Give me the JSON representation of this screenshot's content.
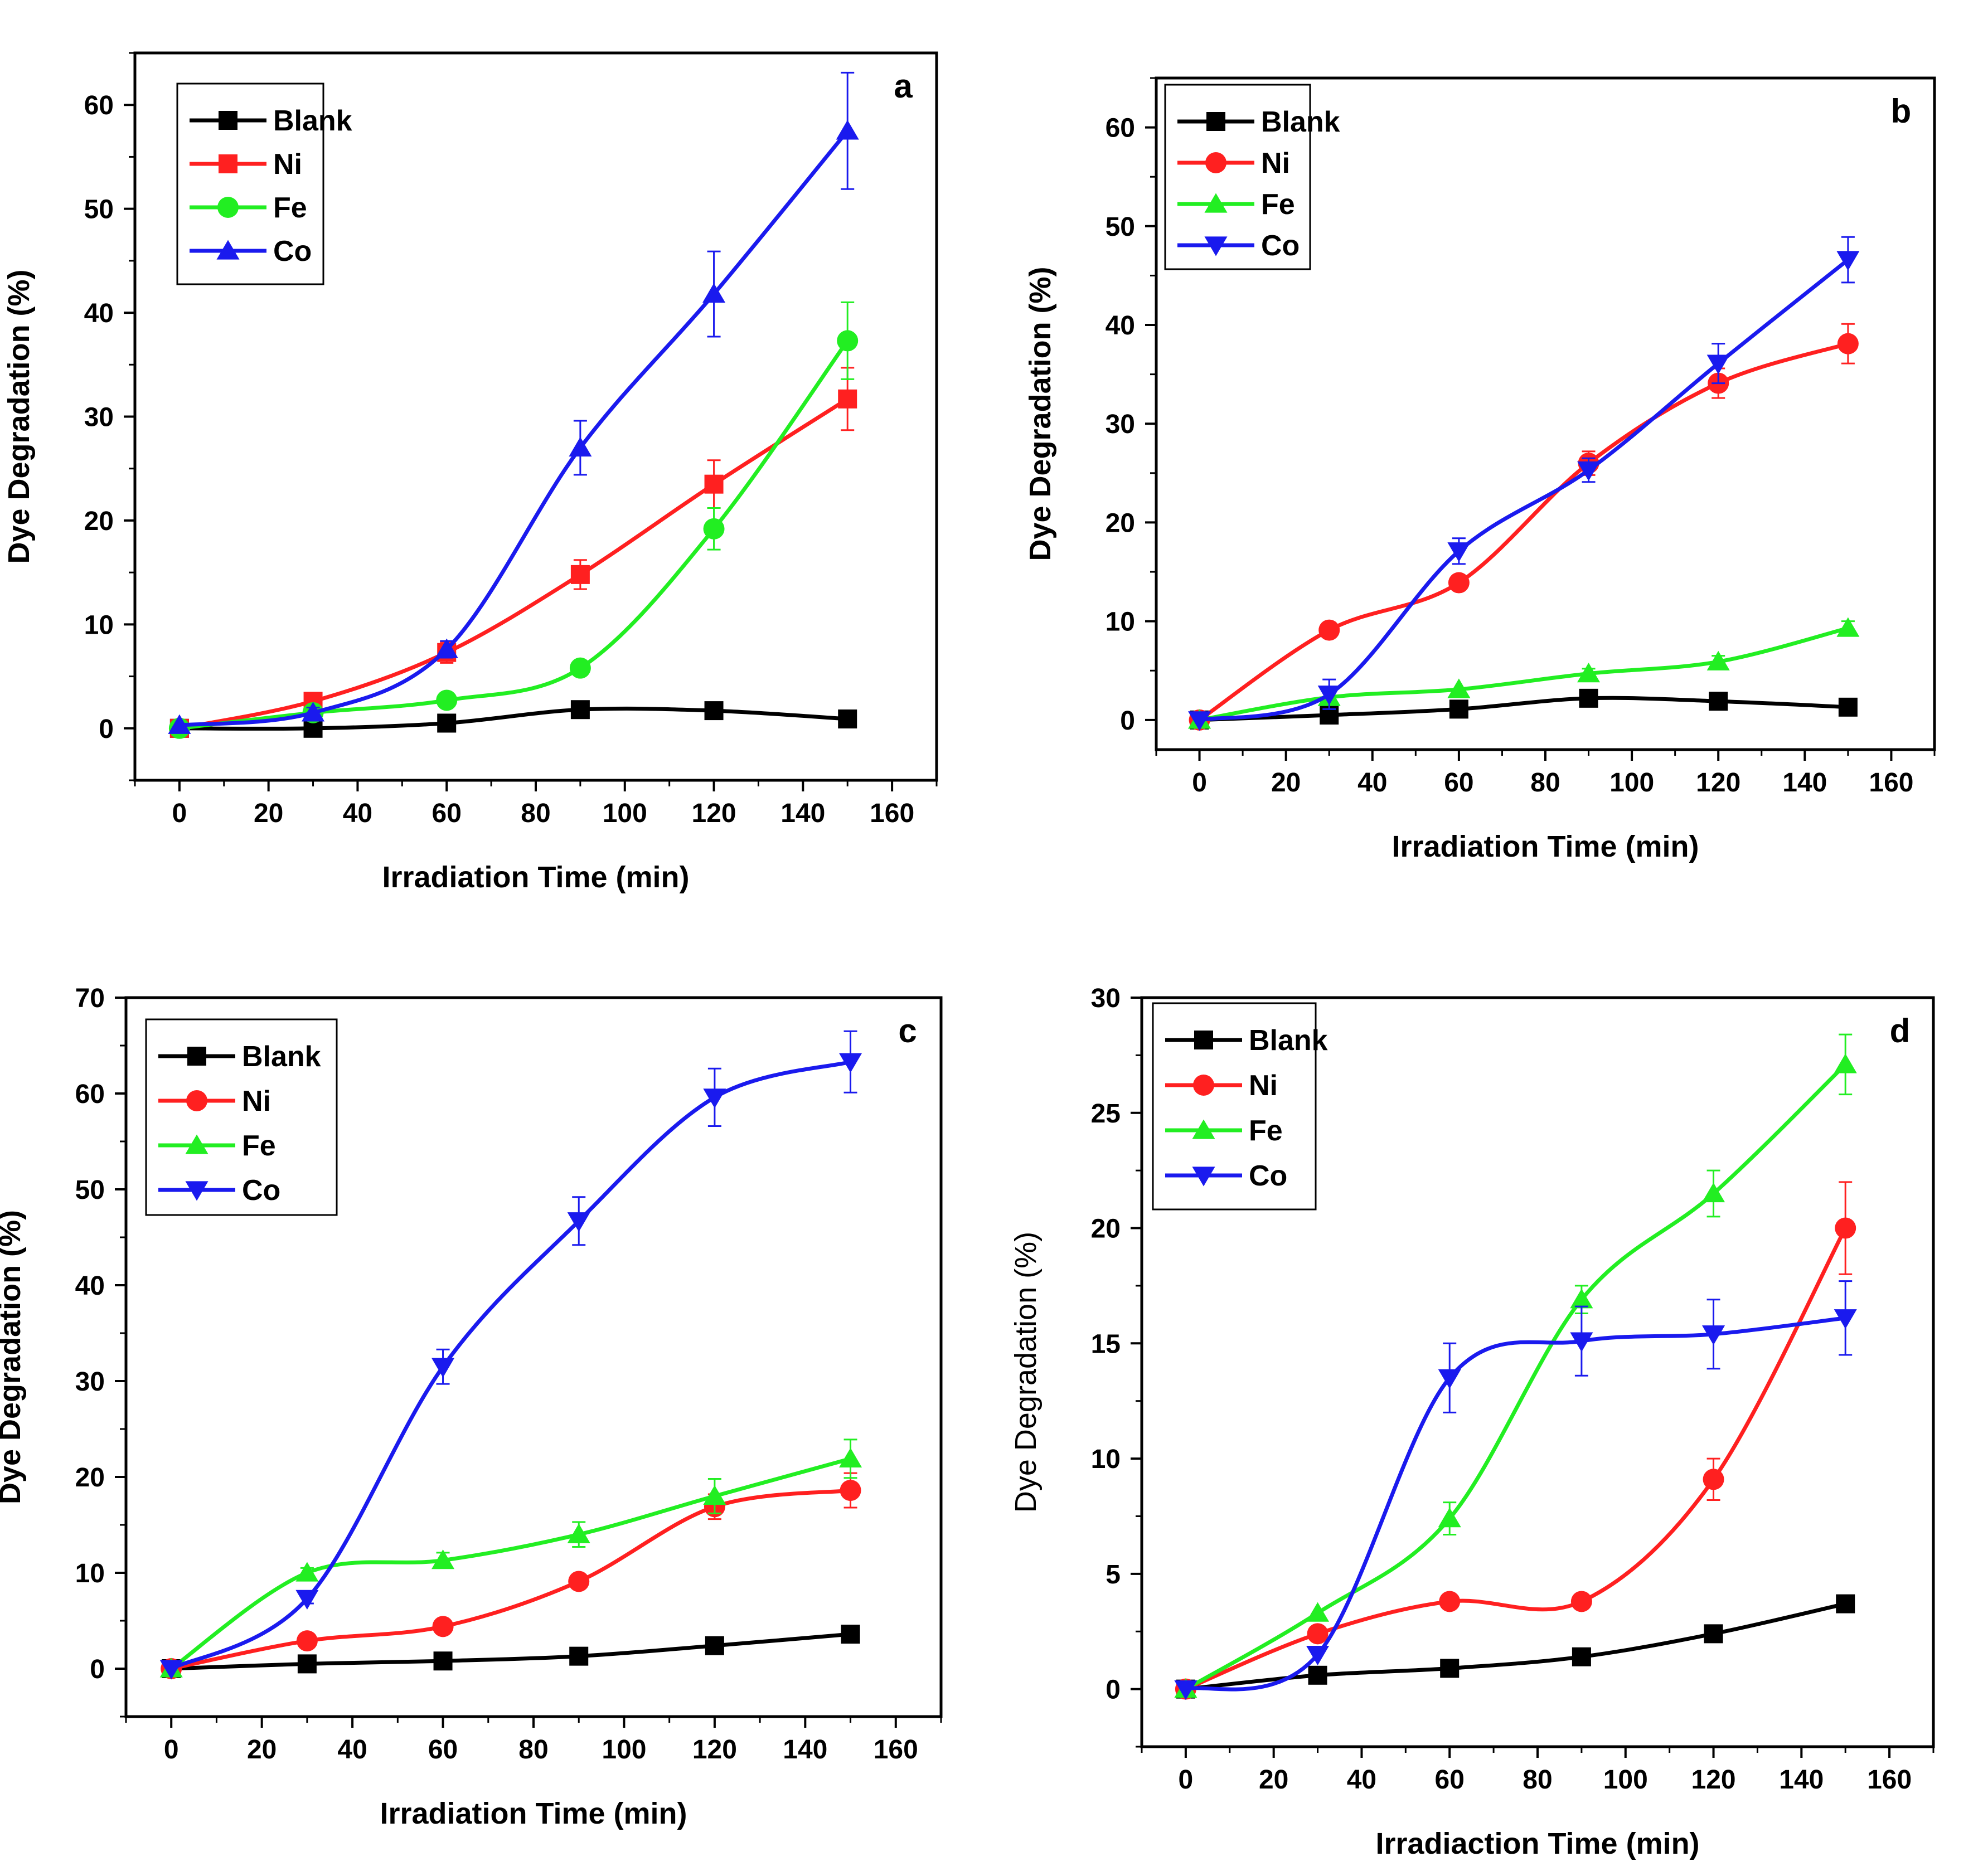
{
  "chart_data": [
    {
      "panel_label": "a",
      "type": "line",
      "xlabel": "Irradiation Time (min)",
      "ylabel": "Dye Degradation (%)",
      "xlim": [
        -10,
        170
      ],
      "ylim": [
        -5,
        65
      ],
      "xticks": [
        "0",
        "20",
        "40",
        "60",
        "80",
        "100",
        "120",
        "140",
        "160"
      ],
      "yticks": [
        "0",
        "10",
        "20",
        "30",
        "40",
        "50",
        "60"
      ],
      "x": [
        0,
        30,
        60,
        90,
        120,
        150
      ],
      "series": [
        {
          "name": "Blank",
          "color": "#000000",
          "marker": "square",
          "values": [
            0,
            0,
            0.5,
            1.8,
            1.7,
            0.9
          ],
          "errors": [
            0,
            0,
            0,
            0,
            0,
            0
          ]
        },
        {
          "name": "Ni",
          "color": "#ff2020",
          "marker": "square",
          "values": [
            0,
            2.6,
            7.3,
            14.8,
            23.5,
            31.7
          ],
          "errors": [
            0,
            0.5,
            1.0,
            1.4,
            2.3,
            3.0
          ]
        },
        {
          "name": "Fe",
          "color": "#22ee22",
          "marker": "circle",
          "values": [
            0,
            1.5,
            2.7,
            5.8,
            19.2,
            37.3
          ],
          "errors": [
            0,
            0,
            0,
            0,
            2.0,
            3.7
          ]
        },
        {
          "name": "Co",
          "color": "#1a1aee",
          "marker": "triangle-up",
          "values": [
            0.3,
            1.5,
            7.6,
            27.0,
            41.8,
            57.5
          ],
          "errors": [
            0,
            0.5,
            0.8,
            2.6,
            4.1,
            5.6
          ]
        }
      ]
    },
    {
      "panel_label": "b",
      "type": "line",
      "xlabel": "Irradiation Time (min)",
      "ylabel": "Dye Degradation (%)",
      "xlim": [
        -10,
        170
      ],
      "ylim": [
        -3,
        65
      ],
      "xticks": [
        "0",
        "20",
        "40",
        "60",
        "80",
        "100",
        "120",
        "140",
        "160"
      ],
      "yticks": [
        "0",
        "10",
        "20",
        "30",
        "40",
        "50",
        "60"
      ],
      "x": [
        0,
        30,
        60,
        90,
        120,
        150
      ],
      "series": [
        {
          "name": "Blank",
          "color": "#000000",
          "marker": "square",
          "values": [
            0,
            0.5,
            1.1,
            2.2,
            1.9,
            1.3
          ],
          "errors": [
            0,
            0,
            0,
            0,
            0,
            0
          ]
        },
        {
          "name": "Ni",
          "color": "#ff2020",
          "marker": "circle",
          "values": [
            0,
            9.1,
            13.9,
            26.0,
            34.1,
            38.1
          ],
          "errors": [
            0,
            0,
            0,
            1.2,
            1.5,
            2.0
          ]
        },
        {
          "name": "Fe",
          "color": "#22ee22",
          "marker": "triangle-up",
          "values": [
            0,
            2.3,
            3.1,
            4.7,
            5.9,
            9.3
          ],
          "errors": [
            0,
            0,
            0,
            0.5,
            0.6,
            0.7
          ]
        },
        {
          "name": "Co",
          "color": "#1a1aee",
          "marker": "triangle-down",
          "values": [
            0,
            2.6,
            17.1,
            25.3,
            36.1,
            46.6
          ],
          "errors": [
            0,
            1.5,
            1.3,
            1.2,
            2.0,
            2.3
          ]
        }
      ]
    },
    {
      "panel_label": "c",
      "type": "line",
      "xlabel": "Irradiation Time (min)",
      "ylabel": "Dye Degradation (%)",
      "xlim": [
        -10,
        170
      ],
      "ylim": [
        -5,
        70
      ],
      "xticks": [
        "0",
        "20",
        "40",
        "60",
        "80",
        "100",
        "120",
        "140",
        "160"
      ],
      "yticks": [
        "0",
        "10",
        "20",
        "30",
        "40",
        "50",
        "60",
        "70"
      ],
      "x": [
        0,
        30,
        60,
        90,
        120,
        150
      ],
      "series": [
        {
          "name": "Blank",
          "color": "#000000",
          "marker": "square",
          "values": [
            0,
            0.5,
            0.8,
            1.3,
            2.4,
            3.6
          ],
          "errors": [
            0,
            0,
            0,
            0,
            0,
            0
          ]
        },
        {
          "name": "Ni",
          "color": "#ff2020",
          "marker": "circle",
          "values": [
            0,
            2.9,
            4.4,
            9.1,
            16.9,
            18.6
          ],
          "errors": [
            0,
            0,
            0,
            0,
            1.3,
            1.8
          ]
        },
        {
          "name": "Fe",
          "color": "#22ee22",
          "marker": "triangle-up",
          "values": [
            0,
            10.0,
            11.3,
            14.0,
            18.0,
            21.9
          ],
          "errors": [
            0,
            0.5,
            0.8,
            1.3,
            1.8,
            2.0
          ]
        },
        {
          "name": "Co",
          "color": "#1a1aee",
          "marker": "triangle-down",
          "values": [
            0,
            7.3,
            31.5,
            46.7,
            59.6,
            63.3
          ],
          "errors": [
            0,
            0.5,
            1.8,
            2.5,
            3.0,
            3.2
          ]
        }
      ]
    },
    {
      "panel_label": "d",
      "type": "line",
      "xlabel": "Irradiaction Time (min)",
      "ylabel": "Dye Degradation (%)",
      "xlim": [
        -10,
        170
      ],
      "ylim": [
        -2.5,
        30
      ],
      "xticks": [
        "0",
        "20",
        "40",
        "60",
        "80",
        "100",
        "120",
        "140",
        "160"
      ],
      "yticks": [
        "0",
        "5",
        "10",
        "15",
        "20",
        "25",
        "30"
      ],
      "x": [
        0,
        30,
        60,
        90,
        120,
        150
      ],
      "series": [
        {
          "name": "Blank",
          "color": "#000000",
          "marker": "square",
          "values": [
            0,
            0.6,
            0.9,
            1.4,
            2.4,
            3.7
          ],
          "errors": [
            0,
            0,
            0,
            0,
            0,
            0
          ]
        },
        {
          "name": "Ni",
          "color": "#ff2020",
          "marker": "circle",
          "values": [
            0,
            2.4,
            3.8,
            3.8,
            9.1,
            20.0
          ],
          "errors": [
            0,
            0,
            0,
            0,
            0.9,
            2.0
          ]
        },
        {
          "name": "Fe",
          "color": "#22ee22",
          "marker": "triangle-up",
          "values": [
            0,
            3.3,
            7.4,
            16.9,
            21.5,
            27.1
          ],
          "errors": [
            0,
            0,
            0.7,
            0.6,
            1.0,
            1.3
          ]
        },
        {
          "name": "Co",
          "color": "#1a1aee",
          "marker": "triangle-down",
          "values": [
            0,
            1.5,
            13.5,
            15.1,
            15.4,
            16.1
          ],
          "errors": [
            0,
            0,
            1.5,
            1.5,
            1.5,
            1.6
          ]
        }
      ]
    }
  ]
}
